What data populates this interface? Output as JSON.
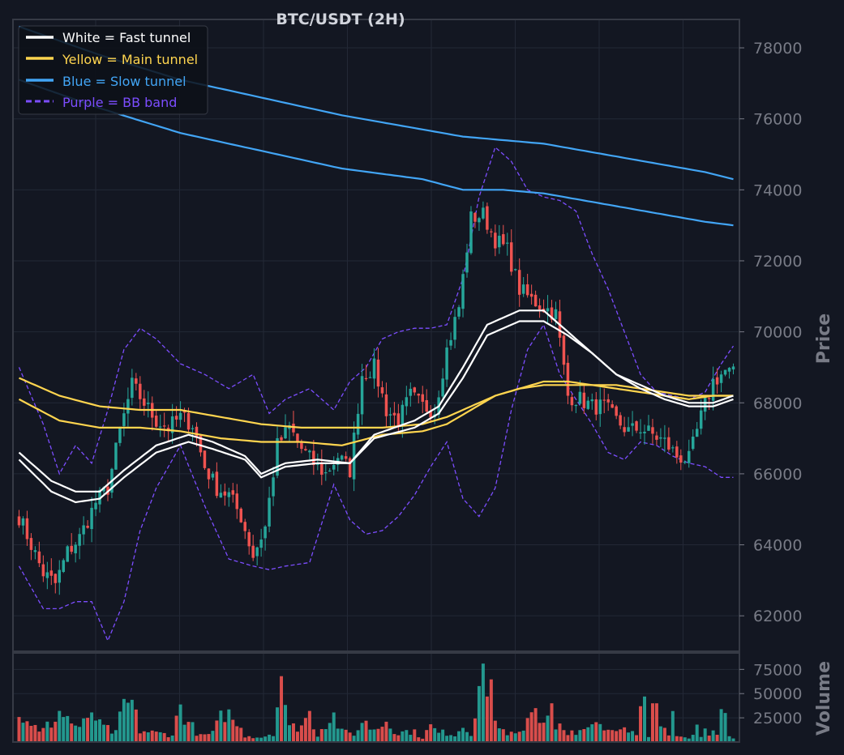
{
  "colors": {
    "background": "#131722",
    "frame": "#363a45",
    "grid": "#232836",
    "tick_text": "#787b86",
    "title_text": "#d1d4dc",
    "up": "#26a69a",
    "down": "#ef5350",
    "fast": "#ffffff",
    "main": "#ffd54f",
    "slow": "#42a5f5",
    "bb": "#7c4dff"
  },
  "chart_data": [
    {
      "type": "line",
      "title": "BTC/USDT (2H)",
      "ylabel": "Price",
      "ylim": [
        61000,
        78800
      ],
      "yticks": [
        62000,
        64000,
        66000,
        68000,
        70000,
        72000,
        74000,
        76000,
        78000
      ],
      "grid": true,
      "legend_position": "top-left",
      "legend": [
        {
          "label": "White = Fast tunnel",
          "color": "#ffffff",
          "style": "solid"
        },
        {
          "label": "Yellow = Main tunnel",
          "color": "#ffd54f",
          "style": "solid"
        },
        {
          "label": "Blue = Slow tunnel",
          "color": "#42a5f5",
          "style": "solid"
        },
        {
          "label": "Purple = BB band",
          "color": "#7c4dff",
          "style": "dashed"
        }
      ],
      "candles_close_waypoints": [
        [
          0,
          64800
        ],
        [
          6,
          63200
        ],
        [
          9,
          62900
        ],
        [
          12,
          63800
        ],
        [
          15,
          64200
        ],
        [
          19,
          65200
        ],
        [
          22,
          65600
        ],
        [
          25,
          67200
        ],
        [
          28,
          68500
        ],
        [
          31,
          68000
        ],
        [
          34,
          67500
        ],
        [
          37,
          67300
        ],
        [
          40,
          67600
        ],
        [
          43,
          67400
        ],
        [
          46,
          66200
        ],
        [
          49,
          65600
        ],
        [
          52,
          65400
        ],
        [
          55,
          64800
        ],
        [
          58,
          63700
        ],
        [
          61,
          64500
        ],
        [
          64,
          66800
        ],
        [
          67,
          67300
        ],
        [
          70,
          66700
        ],
        [
          73,
          66300
        ],
        [
          76,
          66000
        ],
        [
          79,
          66500
        ],
        [
          82,
          66100
        ],
        [
          85,
          68800
        ],
        [
          88,
          69000
        ],
        [
          91,
          67800
        ],
        [
          94,
          67500
        ],
        [
          97,
          68200
        ],
        [
          100,
          67900
        ],
        [
          103,
          67800
        ],
        [
          106,
          69500
        ],
        [
          109,
          70700
        ],
        [
          112,
          73200
        ],
        [
          115,
          73300
        ],
        [
          118,
          72600
        ],
        [
          121,
          72300
        ],
        [
          124,
          71200
        ],
        [
          127,
          70900
        ],
        [
          130,
          70700
        ],
        [
          133,
          70500
        ],
        [
          136,
          68200
        ],
        [
          139,
          68100
        ],
        [
          142,
          67900
        ],
        [
          145,
          67900
        ],
        [
          148,
          67500
        ],
        [
          151,
          67200
        ],
        [
          154,
          67300
        ],
        [
          157,
          67100
        ],
        [
          160,
          66900
        ],
        [
          163,
          66500
        ],
        [
          166,
          66400
        ],
        [
          169,
          67600
        ],
        [
          172,
          68600
        ],
        [
          175,
          68900
        ],
        [
          177,
          68800
        ]
      ],
      "candle_count": 178,
      "series": [
        {
          "name": "White = Fast tunnel",
          "color": "#ffffff",
          "x": [
            0,
            8,
            14,
            20,
            26,
            34,
            42,
            48,
            56,
            60,
            66,
            74,
            82,
            88,
            98,
            104,
            110,
            116,
            124,
            130,
            136,
            142,
            148,
            154,
            160,
            166,
            172,
            177
          ],
          "upper": [
            66600,
            65800,
            65500,
            65500,
            66100,
            66800,
            67100,
            66900,
            66500,
            66000,
            66300,
            66400,
            66300,
            67100,
            67500,
            67900,
            69000,
            70200,
            70600,
            70600,
            70000,
            69400,
            68800,
            68500,
            68200,
            68000,
            68000,
            68200
          ],
          "lower": [
            66400,
            65500,
            65200,
            65300,
            65900,
            66600,
            66900,
            66700,
            66400,
            65900,
            66200,
            66300,
            66300,
            67000,
            67300,
            67700,
            68700,
            69900,
            70300,
            70300,
            69900,
            69400,
            68800,
            68400,
            68100,
            67900,
            67900,
            68100
          ]
        },
        {
          "name": "Yellow = Main tunnel",
          "color": "#ffd54f",
          "x": [
            0,
            10,
            20,
            30,
            40,
            50,
            60,
            70,
            80,
            90,
            100,
            106,
            112,
            118,
            124,
            130,
            136,
            142,
            148,
            154,
            160,
            166,
            172,
            177
          ],
          "upper": [
            68700,
            68200,
            67900,
            67800,
            67800,
            67600,
            67400,
            67300,
            67300,
            67300,
            67400,
            67600,
            67900,
            68200,
            68400,
            68600,
            68600,
            68500,
            68500,
            68400,
            68300,
            68200,
            68200,
            68200
          ],
          "lower": [
            68100,
            67500,
            67300,
            67300,
            67200,
            67000,
            66900,
            66900,
            66800,
            67100,
            67200,
            67400,
            67800,
            68200,
            68400,
            68500,
            68500,
            68500,
            68400,
            68300,
            68200,
            68100,
            68200,
            68200
          ]
        },
        {
          "name": "Blue = Slow tunnel",
          "color": "#42a5f5",
          "x": [
            0,
            20,
            40,
            60,
            80,
            100,
            110,
            120,
            130,
            140,
            150,
            160,
            170,
            177
          ],
          "upper": [
            78600,
            77800,
            77100,
            76600,
            76100,
            75700,
            75500,
            75400,
            75300,
            75100,
            74900,
            74700,
            74500,
            74300
          ],
          "lower": [
            77100,
            76300,
            75600,
            75100,
            74600,
            74300,
            74000,
            74000,
            73900,
            73700,
            73500,
            73300,
            73100,
            73000
          ]
        },
        {
          "name": "Purple = BB band",
          "color": "#7c4dff",
          "x": [
            0,
            6,
            10,
            14,
            18,
            22,
            26,
            30,
            34,
            40,
            46,
            52,
            58,
            62,
            66,
            72,
            78,
            82,
            86,
            90,
            94,
            98,
            102,
            106,
            110,
            114,
            118,
            122,
            126,
            130,
            134,
            138,
            142,
            146,
            150,
            154,
            158,
            162,
            166,
            170,
            174,
            177
          ],
          "upper": [
            69000,
            67400,
            66000,
            66800,
            66300,
            67800,
            69500,
            70100,
            69800,
            69100,
            68800,
            68400,
            68800,
            67700,
            68100,
            68400,
            67800,
            68600,
            69000,
            69800,
            70000,
            70100,
            70100,
            70200,
            71500,
            73800,
            75200,
            74800,
            74000,
            73800,
            73700,
            73400,
            72200,
            71200,
            70000,
            68800,
            68300,
            68200,
            68100,
            68300,
            69100,
            69600
          ],
          "lower": [
            63400,
            62200,
            62200,
            62400,
            62400,
            61300,
            62400,
            64400,
            65600,
            66800,
            65100,
            63600,
            63400,
            63300,
            63400,
            63500,
            65700,
            64700,
            64300,
            64400,
            64800,
            65400,
            66200,
            66900,
            65300,
            64800,
            65600,
            67800,
            69500,
            70200,
            68800,
            68100,
            67400,
            66600,
            66400,
            66900,
            66800,
            66500,
            66300,
            66200,
            65900,
            65900
          ]
        }
      ]
    },
    {
      "type": "bar",
      "ylabel": "Volume",
      "ylim": [
        0,
        92000
      ],
      "yticks": [
        25000,
        50000,
        75000
      ],
      "grid": true,
      "candle_count": 178,
      "volume_waypoints": [
        [
          0,
          23000
        ],
        [
          2,
          27000
        ],
        [
          5,
          9000
        ],
        [
          8,
          20000
        ],
        [
          10,
          31000
        ],
        [
          12,
          25000
        ],
        [
          15,
          12000
        ],
        [
          18,
          33000
        ],
        [
          20,
          17000
        ],
        [
          24,
          9000
        ],
        [
          26,
          38000
        ],
        [
          28,
          39000
        ],
        [
          30,
          12000
        ],
        [
          34,
          9000
        ],
        [
          38,
          8000
        ],
        [
          40,
          37000
        ],
        [
          42,
          20000
        ],
        [
          45,
          6000
        ],
        [
          48,
          9000
        ],
        [
          51,
          32000
        ],
        [
          53,
          24000
        ],
        [
          56,
          7000
        ],
        [
          60,
          5000
        ],
        [
          63,
          10000
        ],
        [
          65,
          68000
        ],
        [
          67,
          14000
        ],
        [
          70,
          18000
        ],
        [
          72,
          29000
        ],
        [
          74,
          8000
        ],
        [
          76,
          21000
        ],
        [
          78,
          27000
        ],
        [
          80,
          10000
        ],
        [
          83,
          9000
        ],
        [
          86,
          21000
        ],
        [
          88,
          10000
        ],
        [
          91,
          23000
        ],
        [
          94,
          9000
        ],
        [
          97,
          12000
        ],
        [
          100,
          5000
        ],
        [
          102,
          16000
        ],
        [
          104,
          9000
        ],
        [
          106,
          10000
        ],
        [
          108,
          8000
        ],
        [
          110,
          17000
        ],
        [
          112,
          10000
        ],
        [
          115,
          81000
        ],
        [
          117,
          47000
        ],
        [
          119,
          14000
        ],
        [
          122,
          8000
        ],
        [
          125,
          10000
        ],
        [
          128,
          35000
        ],
        [
          130,
          20000
        ],
        [
          132,
          40000
        ],
        [
          134,
          20000
        ],
        [
          136,
          10000
        ],
        [
          138,
          8000
        ],
        [
          140,
          12000
        ],
        [
          143,
          16000
        ],
        [
          145,
          20000
        ],
        [
          147,
          9000
        ],
        [
          150,
          12000
        ],
        [
          153,
          8000
        ],
        [
          156,
          5000
        ],
        [
          158,
          39000
        ],
        [
          160,
          14000
        ],
        [
          163,
          6000
        ],
        [
          166,
          5000
        ],
        [
          168,
          10000
        ],
        [
          170,
          4000
        ],
        [
          172,
          9000
        ],
        [
          174,
          13000
        ],
        [
          176,
          6000
        ]
      ],
      "special_volumes": [
        [
          1,
          20000
        ],
        [
          17,
          25000
        ],
        [
          53,
          23000
        ],
        [
          65,
          68000
        ],
        [
          86,
          22000
        ],
        [
          88,
          13000
        ],
        [
          115,
          81000
        ],
        [
          116,
          47000
        ],
        [
          123,
          9000
        ],
        [
          128,
          35000
        ],
        [
          130,
          20000
        ],
        [
          132,
          40000
        ],
        [
          133,
          13000
        ],
        [
          137,
          12000
        ],
        [
          154,
          37000
        ],
        [
          155,
          47000
        ],
        [
          157,
          40000
        ],
        [
          158,
          40000
        ],
        [
          162,
          32000
        ],
        [
          168,
          18000
        ],
        [
          170,
          14000
        ],
        [
          172,
          12000
        ],
        [
          174,
          34000
        ],
        [
          175,
          30000
        ],
        [
          176,
          6000
        ]
      ]
    }
  ]
}
